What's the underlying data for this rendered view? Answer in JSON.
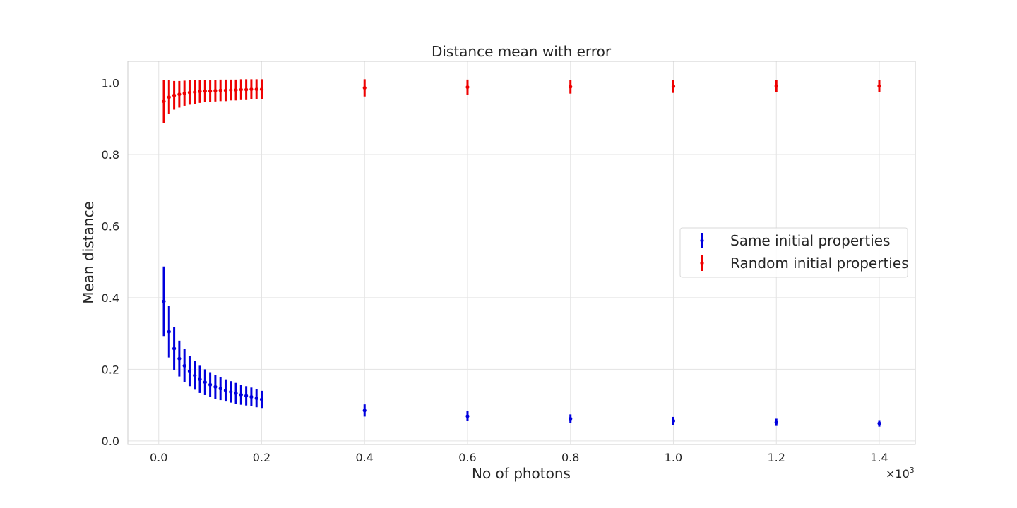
{
  "chart_data": {
    "type": "scatter",
    "title": "Distance mean with error",
    "xlabel": "No of photons",
    "ylabel": "Mean distance",
    "x_multiplier_base": "×10",
    "x_multiplier_exp": "3",
    "xlim": [
      -0.06,
      1.47
    ],
    "ylim": [
      -0.01,
      1.06
    ],
    "xticks": [
      0.0,
      0.2,
      0.4,
      0.6,
      0.8,
      1.0,
      1.2,
      1.4
    ],
    "xtick_labels": [
      "0.0",
      "0.2",
      "0.4",
      "0.6",
      "0.8",
      "1.0",
      "1.2",
      "1.4"
    ],
    "yticks": [
      0.0,
      0.2,
      0.4,
      0.6,
      0.8,
      1.0
    ],
    "ytick_labels": [
      "0.0",
      "0.2",
      "0.4",
      "0.6",
      "0.8",
      "1.0"
    ],
    "grid": true,
    "legend_position": "center-right",
    "series": [
      {
        "name": "Same initial properties",
        "color": "#0000dd",
        "x": [
          0.01,
          0.02,
          0.03,
          0.04,
          0.05,
          0.06,
          0.07,
          0.08,
          0.09,
          0.1,
          0.11,
          0.12,
          0.13,
          0.14,
          0.15,
          0.16,
          0.17,
          0.18,
          0.19,
          0.2,
          0.4,
          0.6,
          0.8,
          1.0,
          1.2,
          1.4
        ],
        "y": [
          0.39,
          0.305,
          0.258,
          0.23,
          0.21,
          0.195,
          0.183,
          0.172,
          0.164,
          0.157,
          0.151,
          0.146,
          0.141,
          0.137,
          0.133,
          0.129,
          0.126,
          0.123,
          0.119,
          0.116,
          0.085,
          0.069,
          0.062,
          0.056,
          0.052,
          0.049
        ],
        "yerr": [
          0.097,
          0.072,
          0.06,
          0.05,
          0.046,
          0.042,
          0.04,
          0.038,
          0.036,
          0.035,
          0.034,
          0.032,
          0.031,
          0.03,
          0.029,
          0.028,
          0.027,
          0.026,
          0.025,
          0.024,
          0.017,
          0.014,
          0.012,
          0.011,
          0.01,
          0.009
        ]
      },
      {
        "name": "Random initial properties",
        "color": "#ee0000",
        "x": [
          0.01,
          0.02,
          0.03,
          0.04,
          0.05,
          0.06,
          0.07,
          0.08,
          0.09,
          0.1,
          0.11,
          0.12,
          0.13,
          0.14,
          0.15,
          0.16,
          0.17,
          0.18,
          0.19,
          0.2,
          0.4,
          0.6,
          0.8,
          1.0,
          1.2,
          1.4
        ],
        "y": [
          0.948,
          0.96,
          0.965,
          0.968,
          0.971,
          0.973,
          0.974,
          0.976,
          0.977,
          0.977,
          0.978,
          0.979,
          0.979,
          0.98,
          0.98,
          0.981,
          0.981,
          0.982,
          0.982,
          0.982,
          0.986,
          0.988,
          0.989,
          0.99,
          0.991,
          0.991
        ],
        "yerr": [
          0.06,
          0.047,
          0.04,
          0.037,
          0.035,
          0.034,
          0.033,
          0.032,
          0.031,
          0.031,
          0.03,
          0.03,
          0.03,
          0.029,
          0.029,
          0.029,
          0.029,
          0.028,
          0.028,
          0.028,
          0.024,
          0.021,
          0.019,
          0.018,
          0.017,
          0.017
        ]
      }
    ]
  }
}
